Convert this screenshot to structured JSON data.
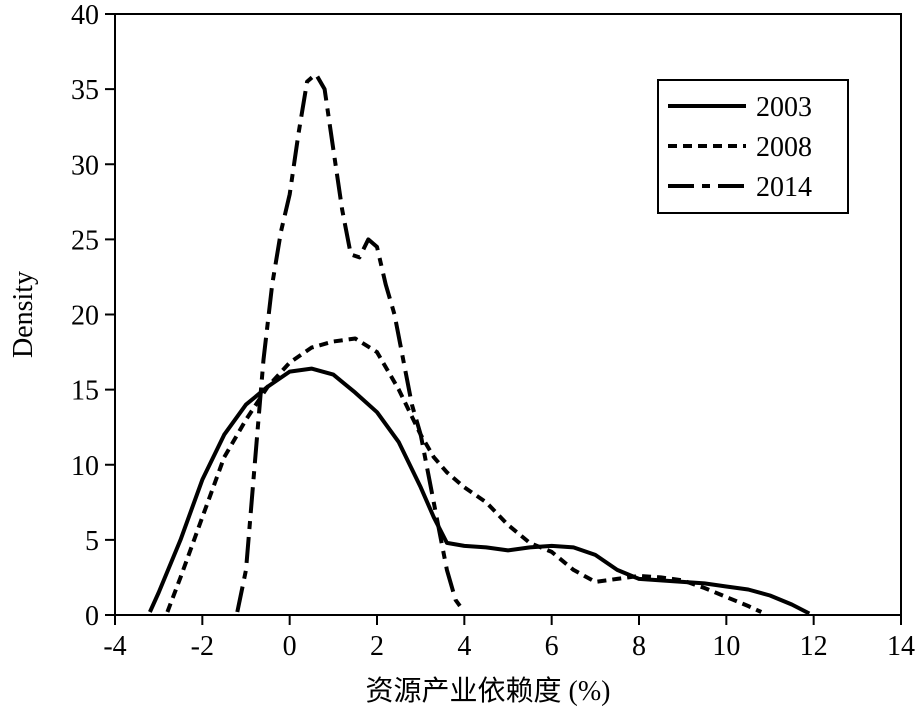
{
  "chart_data": {
    "type": "line",
    "xlabel": "资源产业依赖度 (%)",
    "ylabel": "Density",
    "xlim": [
      -4,
      14
    ],
    "ylim": [
      0,
      40
    ],
    "xticks": [
      -4,
      -2,
      0,
      2,
      4,
      6,
      8,
      10,
      12,
      14
    ],
    "yticks": [
      0,
      5,
      10,
      15,
      20,
      25,
      30,
      35,
      40
    ],
    "grid": false,
    "legend_position": "top-right",
    "series": [
      {
        "name": "2003",
        "style": "solid",
        "color": "#000000",
        "x": [
          -3.2,
          -3.0,
          -2.5,
          -2.0,
          -1.5,
          -1.0,
          -0.5,
          0.0,
          0.5,
          1.0,
          1.5,
          2.0,
          2.5,
          3.0,
          3.3,
          3.6,
          4.0,
          4.5,
          5.0,
          5.5,
          6.0,
          6.5,
          7.0,
          7.5,
          8.0,
          8.5,
          9.0,
          9.5,
          10.0,
          10.5,
          11.0,
          11.5,
          11.9
        ],
        "y": [
          0.2,
          1.5,
          5.0,
          9.0,
          12.0,
          14.0,
          15.2,
          16.2,
          16.4,
          16.0,
          14.8,
          13.5,
          11.5,
          8.5,
          6.5,
          4.8,
          4.6,
          4.5,
          4.3,
          4.5,
          4.6,
          4.5,
          4.0,
          3.0,
          2.4,
          2.3,
          2.2,
          2.1,
          1.9,
          1.7,
          1.3,
          0.7,
          0.1
        ]
      },
      {
        "name": "2008",
        "style": "dashed",
        "color": "#000000",
        "x": [
          -2.8,
          -2.5,
          -2.0,
          -1.5,
          -1.0,
          -0.5,
          0.0,
          0.5,
          1.0,
          1.5,
          2.0,
          2.5,
          3.0,
          3.3,
          3.6,
          4.0,
          4.5,
          5.0,
          5.5,
          6.0,
          6.5,
          7.0,
          7.5,
          8.0,
          8.5,
          9.0,
          9.5,
          10.0,
          10.5,
          10.8
        ],
        "y": [
          0.2,
          2.5,
          6.5,
          10.5,
          13.0,
          15.2,
          16.8,
          17.8,
          18.2,
          18.4,
          17.5,
          15.0,
          12.0,
          10.5,
          9.5,
          8.5,
          7.5,
          6.0,
          4.8,
          4.2,
          3.0,
          2.2,
          2.4,
          2.6,
          2.5,
          2.3,
          1.8,
          1.2,
          0.6,
          0.2
        ]
      },
      {
        "name": "2014",
        "style": "dash-dot",
        "color": "#000000",
        "x": [
          -1.2,
          -1.0,
          -0.8,
          -0.6,
          -0.4,
          -0.2,
          0.0,
          0.2,
          0.4,
          0.6,
          0.8,
          1.0,
          1.2,
          1.4,
          1.6,
          1.8,
          2.0,
          2.2,
          2.4,
          2.6,
          2.8,
          3.0,
          3.2,
          3.4,
          3.6,
          3.8,
          4.0
        ],
        "y": [
          0.2,
          3.0,
          10.0,
          17.0,
          22.0,
          25.5,
          28.0,
          32.0,
          35.5,
          36.0,
          35.0,
          31.0,
          27.0,
          24.0,
          23.8,
          25.0,
          24.5,
          22.0,
          20.0,
          17.0,
          14.0,
          12.0,
          9.0,
          6.0,
          3.0,
          1.0,
          0.2
        ]
      }
    ]
  }
}
